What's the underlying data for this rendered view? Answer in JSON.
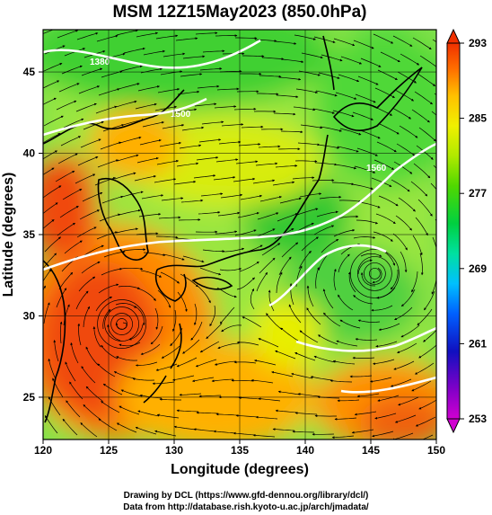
{
  "title": "MSM 12Z15May2023 (850.0hPa)",
  "x_axis": {
    "label": "Longitude (degrees)",
    "range": [
      120,
      150
    ],
    "ticks": [
      120,
      125,
      130,
      135,
      140,
      145,
      150
    ],
    "tick_labels": [
      "120",
      "125",
      "130",
      "135",
      "140",
      "145",
      "150"
    ]
  },
  "y_axis": {
    "label": "Latitude  (degrees)",
    "range": [
      22.4,
      47.6
    ],
    "ticks": [
      25,
      30,
      35,
      40,
      45
    ],
    "tick_labels": [
      "25",
      "30",
      "35",
      "40",
      "45"
    ]
  },
  "colorbar": {
    "min": 253,
    "max": 293,
    "ticks": [
      253,
      261,
      269,
      277,
      285,
      293
    ],
    "tick_labels": [
      "253",
      "261",
      "269",
      "277",
      "285",
      "293"
    ],
    "colors": [
      "#d000d0",
      "#8000c8",
      "#1010c0",
      "#0060ff",
      "#00c0ff",
      "#00e0a0",
      "#00d040",
      "#20d000",
      "#80e000",
      "#d0f000",
      "#ffe000",
      "#ffa000",
      "#ff6000",
      "#f03000"
    ]
  },
  "contour_labels": [
    "1380",
    "1500",
    "1560"
  ],
  "map_colors": {
    "warm": "#f04a10",
    "orange": "#ff9a00",
    "yellow": "#e6ec00",
    "green": "#30d030",
    "cool_green": "#7ae050",
    "contour": "#ffffff",
    "streamline": "#000000"
  },
  "lows": [
    {
      "name": "low-near-japan-east",
      "lon": 145.3,
      "lat": 32.6
    },
    {
      "name": "low-east-china-sea",
      "lon": 126.0,
      "lat": 29.5
    }
  ],
  "credits": {
    "line1": "Drawing by DCL (https://www.gfd-dennou.org/library/dcl/)",
    "line2": "Data from http://database.rish.kyoto-u.ac.jp/arch/jmadata/"
  }
}
